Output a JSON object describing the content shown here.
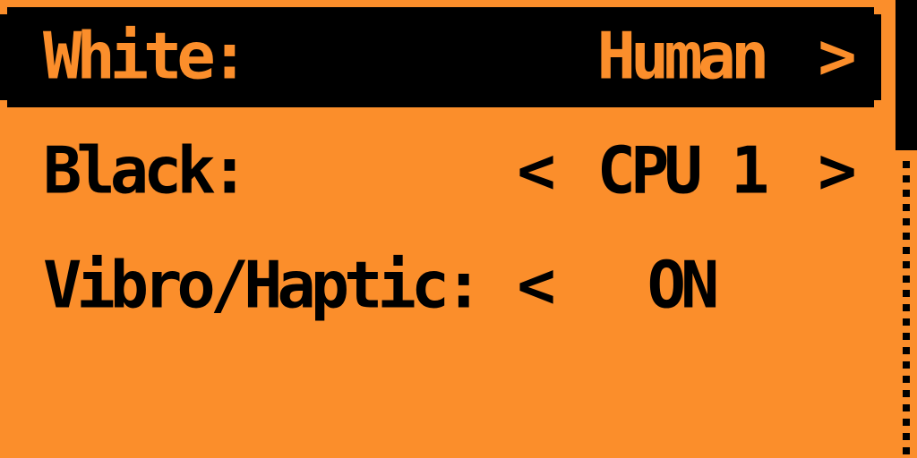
{
  "colors": {
    "background_orange": "#FB8E2B",
    "foreground_black": "#000000",
    "selected_row_bg": "#000000",
    "selected_row_text": "#FB8E2B"
  },
  "menu": {
    "items": [
      {
        "label": "White:",
        "value": "Human",
        "left_arrow": "",
        "right_arrow": ">",
        "selected": true
      },
      {
        "label": "Black:",
        "value": "CPU 1",
        "left_arrow": "<",
        "right_arrow": ">",
        "selected": false
      },
      {
        "label": "Vibro/Haptic:",
        "value": "ON",
        "left_arrow": "<",
        "right_arrow": "",
        "selected": false
      }
    ]
  },
  "scrollbar": {
    "thumb_position": "top"
  }
}
